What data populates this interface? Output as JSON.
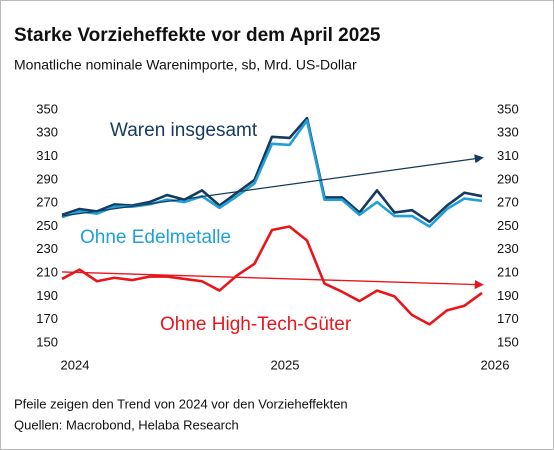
{
  "chart_data": {
    "type": "line",
    "title": "Starke Vorzieheffekte vor dem April 2025",
    "subtitle": "Monatliche nominale Warenimporte, sb, Mrd. US-Dollar",
    "notes": [
      "Pfeile zeigen den Trend von 2024 vor den Vorzieheffekten",
      "Quellen: Macrobond, Helaba Research"
    ],
    "x": [
      2024.0,
      2024.0833,
      2024.1667,
      2024.25,
      2024.3333,
      2024.4167,
      2024.5,
      2024.5833,
      2024.6667,
      2024.75,
      2024.8333,
      2024.9167,
      2025.0,
      2025.0833,
      2025.1667,
      2025.25,
      2025.3333,
      2025.4167,
      2025.5,
      2025.5833,
      2025.6667,
      2025.75,
      2025.8333,
      2025.9167,
      2026.0
    ],
    "series": [
      {
        "name": "Waren insgesamt",
        "color": "#16395e",
        "values": [
          260,
          265,
          263,
          269,
          268,
          271,
          277,
          273,
          281,
          268,
          279,
          290,
          327,
          326,
          343,
          275,
          275,
          262,
          281,
          262,
          264,
          254,
          268,
          279,
          276
        ]
      },
      {
        "name": "Ohne Edelmetalle",
        "color": "#1fa0d8",
        "values": [
          258,
          263,
          261,
          267,
          267,
          269,
          273,
          271,
          276,
          266,
          276,
          287,
          321,
          320,
          341,
          273,
          273,
          260,
          271,
          259,
          259,
          250,
          265,
          274,
          272
        ]
      },
      {
        "name": "Ohne High-Tech-Güter",
        "color": "#e8161b",
        "values": [
          205,
          213,
          203,
          206,
          204,
          207,
          207,
          205,
          203,
          195,
          208,
          218,
          247,
          250,
          238,
          201,
          194,
          186,
          195,
          190,
          174,
          166,
          178,
          182,
          193
        ]
      }
    ],
    "trends": [
      {
        "color": "#16395e",
        "x": [
          2024.0,
          2026.0
        ],
        "values": [
          259,
          309
        ]
      },
      {
        "color": "#e8161b",
        "x": [
          2024.0,
          2026.0
        ],
        "values": [
          211,
          200
        ]
      }
    ],
    "xlim": [
      2024,
      2026
    ],
    "xticks": [
      2024,
      2025,
      2026
    ],
    "ylim": [
      150,
      350
    ],
    "yticks": [
      150,
      170,
      190,
      210,
      230,
      250,
      270,
      290,
      310,
      330,
      350
    ]
  }
}
